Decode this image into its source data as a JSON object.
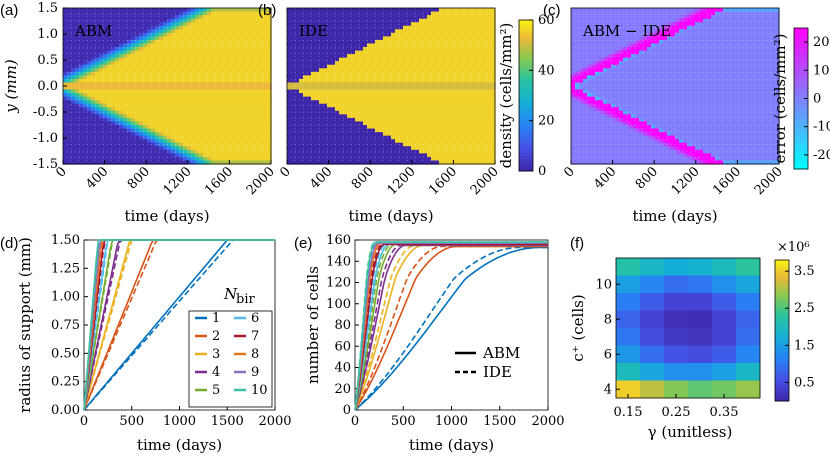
{
  "panel_labels": [
    "(a)",
    "(b)",
    "(c)",
    "(d)",
    "(e)",
    "(f)"
  ],
  "chart_data": [
    {
      "panel": "(a)",
      "type": "heatmap",
      "title": "ABM",
      "xlabel": "time (days)",
      "ylabel": "y (mm)",
      "xticks": [
        "0",
        "400",
        "800",
        "1200",
        "1600",
        "2000"
      ],
      "yticks": [
        "1.5",
        "1.0",
        "0.5",
        "0.0",
        "-0.5",
        "-1.0",
        "-1.5"
      ],
      "xlim": [
        0,
        2000
      ],
      "ylim": [
        -1.5,
        1.5
      ],
      "front_reaches_edge_day": 1450
    },
    {
      "panel": "(b)",
      "type": "heatmap",
      "title": "IDE",
      "xlabel": "time (days)",
      "xticks": [
        "0",
        "400",
        "800",
        "1200",
        "1600",
        "2000"
      ],
      "xlim": [
        0,
        2000
      ],
      "ylim": [
        -1.5,
        1.5
      ],
      "front_reaches_edge_day": 1500,
      "colorbar": {
        "label": "density (cells/mm²)",
        "ticks": [
          "60",
          "40",
          "20",
          "0"
        ],
        "range": [
          0,
          60
        ]
      }
    },
    {
      "panel": "(c)",
      "type": "heatmap",
      "title": "ABM − IDE",
      "xlabel": "time (days)",
      "xticks": [
        "0",
        "400",
        "800",
        "1200",
        "1600",
        "2000"
      ],
      "xlim": [
        0,
        2000
      ],
      "ylim": [
        -1.5,
        1.5
      ],
      "colorbar": {
        "label": "error (cells/mm²)",
        "ticks": [
          "20",
          "10",
          "0",
          "-10",
          "-20"
        ],
        "range": [
          -25,
          25
        ]
      }
    },
    {
      "panel": "(d)",
      "type": "line",
      "xlabel": "time (days)",
      "ylabel": "radius of support (mm)",
      "xticks": [
        "0",
        "500",
        "1000",
        "1500",
        "2000"
      ],
      "yticks": [
        "0.00",
        "0.25",
        "0.50",
        "0.75",
        "1.00",
        "1.25",
        "1.50"
      ],
      "xlim": [
        0,
        2000
      ],
      "ylim": [
        0,
        1.5
      ],
      "legend_title": "N_bir",
      "legend_entries": [
        "1",
        "2",
        "3",
        "4",
        "5",
        "6",
        "7",
        "8",
        "9",
        "10"
      ],
      "series": [
        {
          "name": "1",
          "color": "#0072BD",
          "abm_end_day": 1500,
          "ide_end_day": 1560
        },
        {
          "name": "2",
          "color": "#D95319",
          "abm_end_day": 720,
          "ide_end_day": 760
        },
        {
          "name": "3",
          "color": "#EDB120",
          "abm_end_day": 480,
          "ide_end_day": 500
        },
        {
          "name": "4",
          "color": "#7E2F8E",
          "abm_end_day": 360,
          "ide_end_day": 380
        },
        {
          "name": "5",
          "color": "#77AC30",
          "abm_end_day": 290,
          "ide_end_day": 300
        },
        {
          "name": "6",
          "color": "#4DBEEE",
          "abm_end_day": 240,
          "ide_end_day": 250
        },
        {
          "name": "7",
          "color": "#A2142F",
          "abm_end_day": 205,
          "ide_end_day": 215
        },
        {
          "name": "8",
          "color": "#E8731F",
          "abm_end_day": 180,
          "ide_end_day": 190
        },
        {
          "name": "9",
          "color": "#8C72BF",
          "abm_end_day": 160,
          "ide_end_day": 170
        },
        {
          "name": "10",
          "color": "#3DC2A4",
          "abm_end_day": 145,
          "ide_end_day": 150
        }
      ]
    },
    {
      "panel": "(e)",
      "type": "line",
      "xlabel": "time (days)",
      "ylabel": "number of cells",
      "xticks": [
        "0",
        "500",
        "1000",
        "1500",
        "2000"
      ],
      "yticks": [
        "0",
        "20",
        "40",
        "60",
        "80",
        "100",
        "120",
        "140",
        "160"
      ],
      "xlim": [
        0,
        2000
      ],
      "ylim": [
        0,
        160
      ],
      "legend_entries": [
        "ABM",
        "IDE"
      ],
      "series": [
        {
          "name": "1",
          "color": "#0072BD",
          "plateau": 153,
          "abm_sat_day": 1900,
          "ide_sat_day": 1700
        },
        {
          "name": "2",
          "color": "#D95319",
          "plateau": 154,
          "abm_sat_day": 1050,
          "ide_sat_day": 900
        },
        {
          "name": "3",
          "color": "#EDB120",
          "plateau": 155,
          "abm_sat_day": 700,
          "ide_sat_day": 620
        },
        {
          "name": "4",
          "color": "#7E2F8E",
          "plateau": 155,
          "abm_sat_day": 520,
          "ide_sat_day": 470
        },
        {
          "name": "5",
          "color": "#77AC30",
          "plateau": 156,
          "abm_sat_day": 420,
          "ide_sat_day": 380
        },
        {
          "name": "6",
          "color": "#4DBEEE",
          "plateau": 156,
          "abm_sat_day": 350,
          "ide_sat_day": 320
        },
        {
          "name": "7",
          "color": "#A2142F",
          "plateau": 156,
          "abm_sat_day": 300,
          "ide_sat_day": 280
        },
        {
          "name": "8",
          "color": "#E8731F",
          "plateau": 157,
          "abm_sat_day": 260,
          "ide_sat_day": 245
        },
        {
          "name": "9",
          "color": "#8C72BF",
          "plateau": 157,
          "abm_sat_day": 235,
          "ide_sat_day": 220
        },
        {
          "name": "10",
          "color": "#3DC2A4",
          "plateau": 158,
          "abm_sat_day": 210,
          "ide_sat_day": 200
        }
      ]
    },
    {
      "panel": "(f)",
      "type": "heatmap",
      "xlabel": "γ (unitless)",
      "ylabel": "c⁺ (cells)",
      "xticks": [
        "0.15",
        "0.25",
        "0.35"
      ],
      "yticks": [
        "10",
        "8",
        "6",
        "4"
      ],
      "xlim": [
        0.125,
        0.425
      ],
      "ylim": [
        3.5,
        11.5
      ],
      "gamma_values": [
        0.15,
        0.2,
        0.25,
        0.3,
        0.35,
        0.4
      ],
      "c_values": [
        11,
        10,
        9,
        8,
        7,
        6,
        5,
        4
      ],
      "colorbar": {
        "label": "×10⁶",
        "ticks": [
          "3.5",
          "2.5",
          "1.5",
          "0.5"
        ],
        "range": [
          0,
          3.8
        ]
      },
      "values_e6": [
        [
          2.2,
          1.9,
          1.7,
          1.8,
          2.0,
          2.3
        ],
        [
          1.5,
          1.2,
          0.9,
          1.0,
          1.3,
          1.6
        ],
        [
          1.1,
          0.7,
          0.4,
          0.4,
          0.7,
          1.1
        ],
        [
          0.8,
          0.4,
          0.15,
          0.1,
          0.4,
          0.8
        ],
        [
          1.0,
          0.5,
          0.25,
          0.2,
          0.4,
          0.9
        ],
        [
          1.4,
          0.9,
          0.6,
          0.5,
          0.7,
          1.2
        ],
        [
          2.0,
          1.6,
          1.3,
          1.3,
          1.5,
          1.9
        ],
        [
          3.5,
          3.1,
          2.8,
          2.6,
          2.7,
          2.9
        ]
      ]
    }
  ]
}
